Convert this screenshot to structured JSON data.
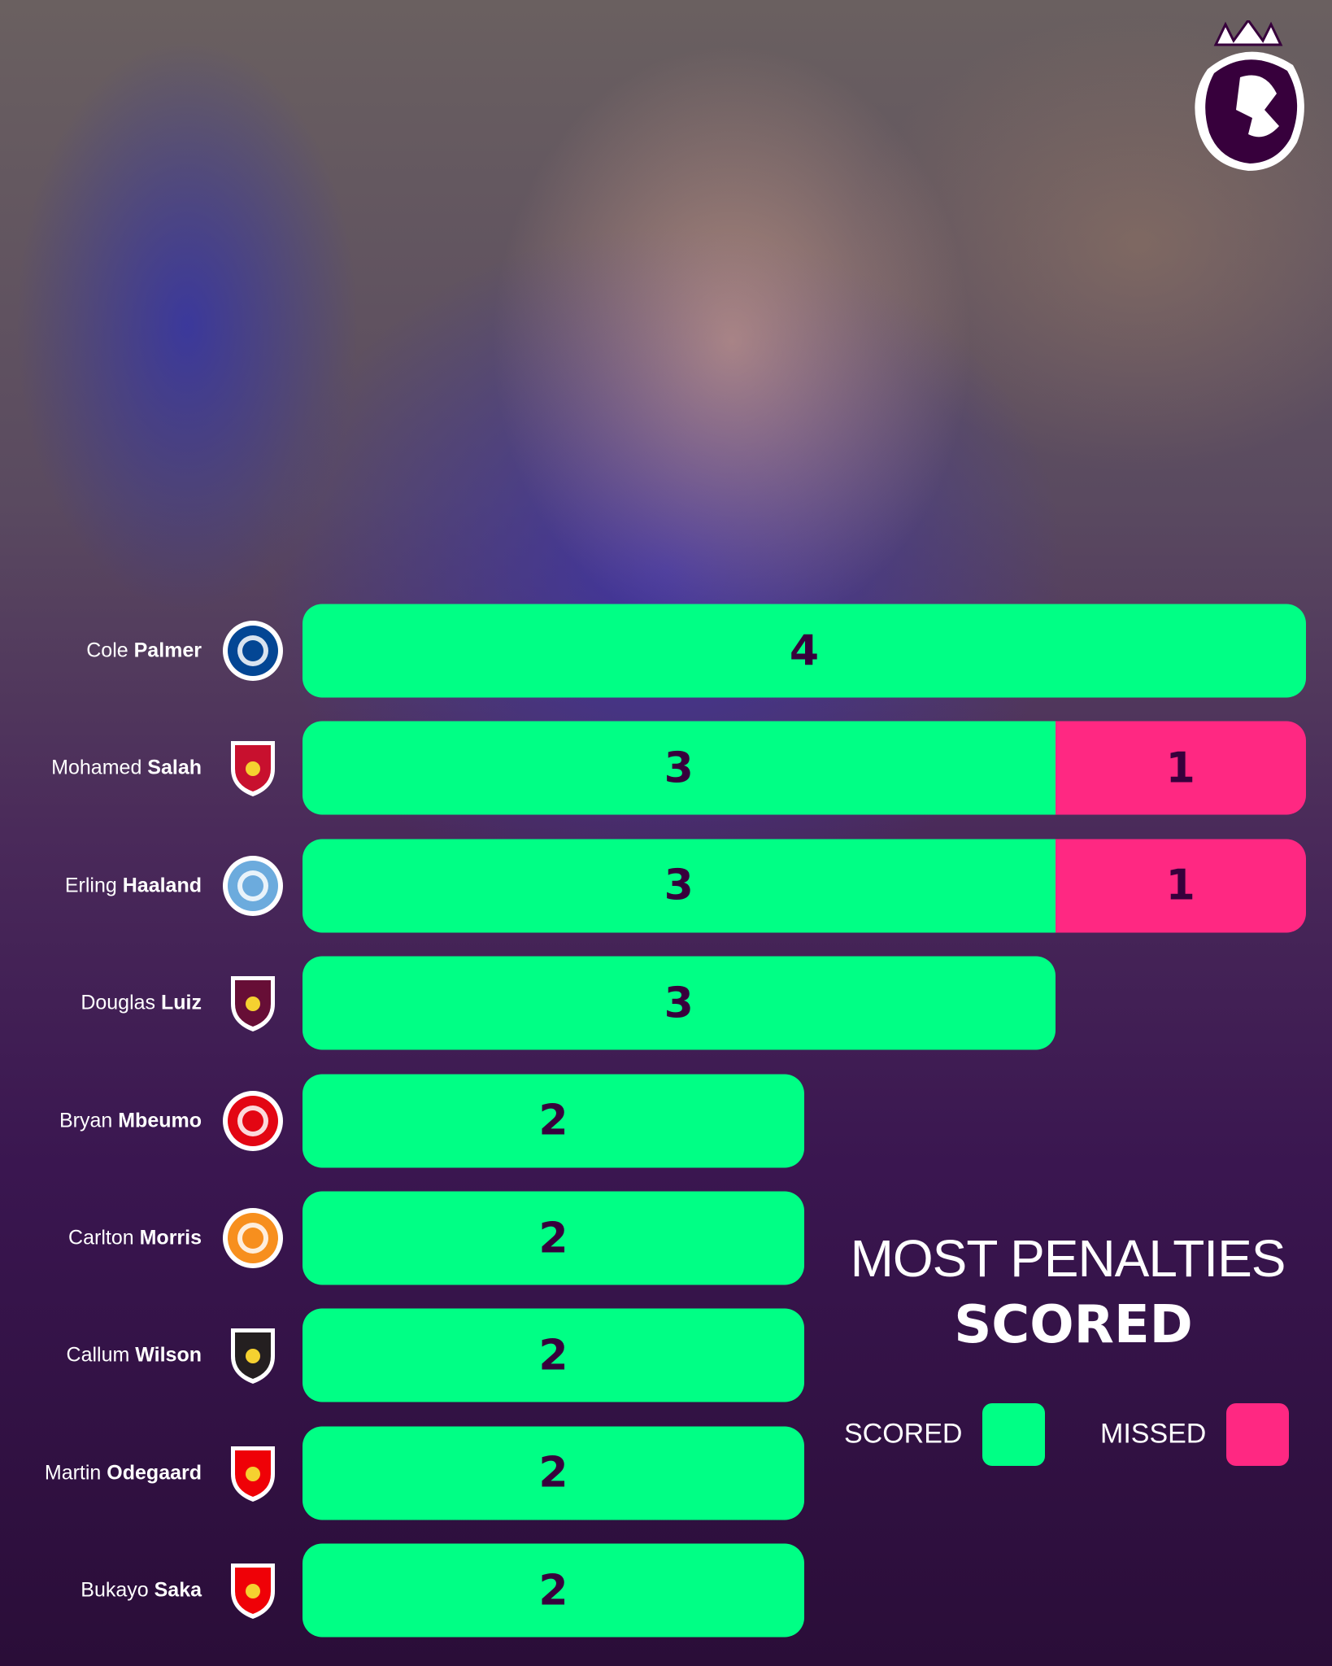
{
  "logo": {
    "name": "premier-league-lion",
    "color": "#37003c"
  },
  "chart_data": {
    "type": "bar",
    "orientation": "horizontal",
    "stacked": true,
    "title": "MOST PENALTIES",
    "subtitle": "SCORED",
    "categories": [
      {
        "first": "Cole",
        "last": "Palmer",
        "club_icon": "chelsea-crest-icon",
        "club_color": "#034694"
      },
      {
        "first": "Mohamed",
        "last": "Salah",
        "club_icon": "liverpool-crest-icon",
        "club_color": "#c8102e"
      },
      {
        "first": "Erling",
        "last": "Haaland",
        "club_icon": "man-city-crest-icon",
        "club_color": "#6cabdd"
      },
      {
        "first": "Douglas",
        "last": "Luiz",
        "club_icon": "aston-villa-crest-icon",
        "club_color": "#670e36"
      },
      {
        "first": "Bryan",
        "last": "Mbeumo",
        "club_icon": "brentford-crest-icon",
        "club_color": "#e30613"
      },
      {
        "first": "Carlton",
        "last": "Morris",
        "club_icon": "luton-town-crest-icon",
        "club_color": "#f78f1e"
      },
      {
        "first": "Callum",
        "last": "Wilson",
        "club_icon": "newcastle-crest-icon",
        "club_color": "#241f20"
      },
      {
        "first": "Martin",
        "last": "Odegaard",
        "club_icon": "arsenal-crest-icon",
        "club_color": "#ef0107"
      },
      {
        "first": "Bukayo",
        "last": "Saka",
        "club_icon": "arsenal-crest-icon",
        "club_color": "#ef0107"
      }
    ],
    "series": [
      {
        "name": "SCORED",
        "color": "#00ff85",
        "values": [
          4,
          3,
          3,
          3,
          2,
          2,
          2,
          2,
          2
        ]
      },
      {
        "name": "MISSED",
        "color": "#ff2882",
        "values": [
          0,
          1,
          1,
          0,
          0,
          0,
          0,
          0,
          0
        ]
      }
    ],
    "xlim": [
      0,
      4
    ],
    "grid": false,
    "legend": "bottom-right",
    "label_color": "#37003c"
  }
}
